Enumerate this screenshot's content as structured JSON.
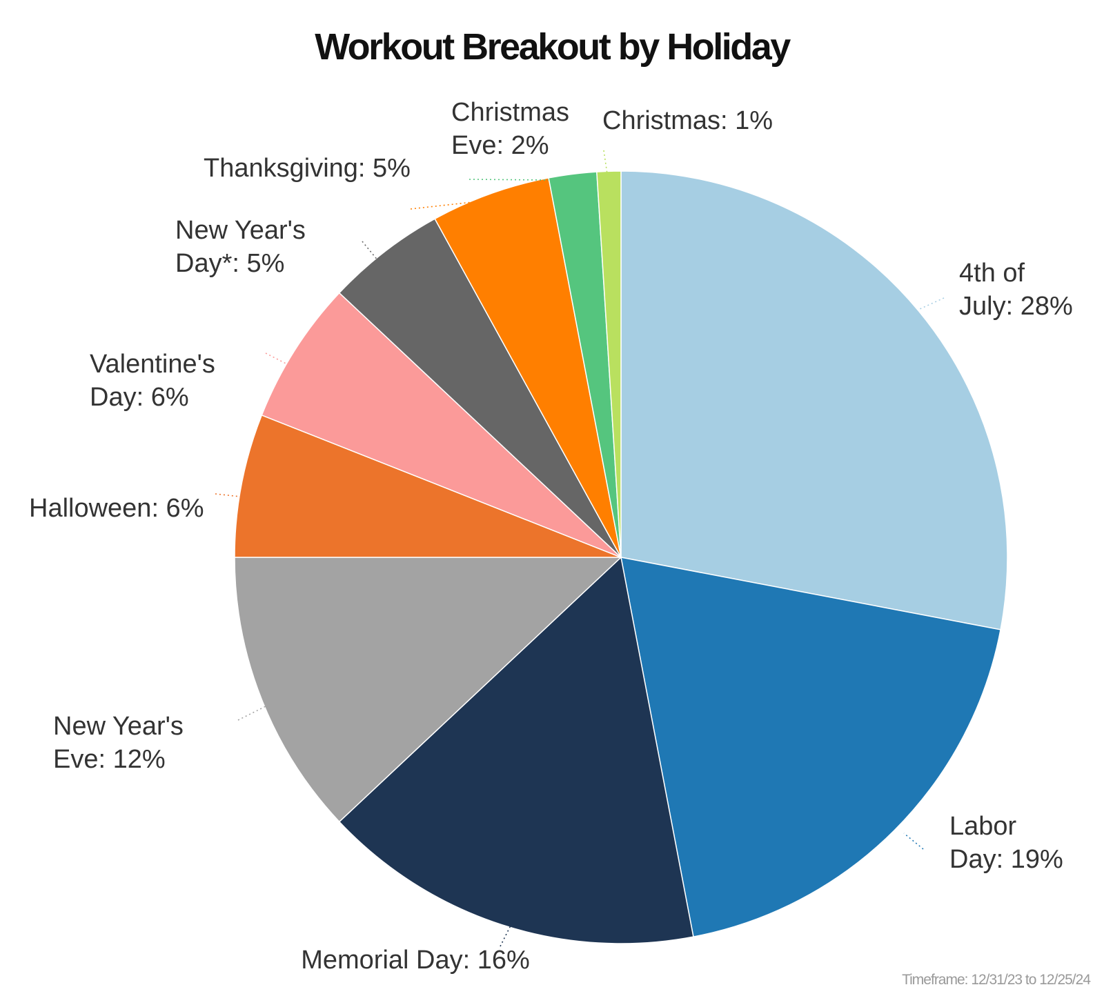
{
  "chart_data": {
    "type": "pie",
    "title": "Workout Breakout by Holiday",
    "footnote": "Timeframe: 12/31/23 to 12/25/24",
    "start_angle_deg": 0,
    "direction": "clockwise",
    "slices": [
      {
        "name": "4th of July",
        "label_lines": [
          "4th of",
          "July: 28%"
        ],
        "value": 28,
        "color": "#a6cee3"
      },
      {
        "name": "Labor Day",
        "label_lines": [
          "Labor",
          "Day: 19%"
        ],
        "value": 19,
        "color": "#1f78b4"
      },
      {
        "name": "Memorial Day",
        "label_lines": [
          "Memorial Day: 16%"
        ],
        "value": 16,
        "color": "#1e3553"
      },
      {
        "name": "New Year's Eve",
        "label_lines": [
          "New Year's",
          "Eve: 12%"
        ],
        "value": 12,
        "color": "#a3a3a3"
      },
      {
        "name": "Halloween",
        "label_lines": [
          "Halloween: 6%"
        ],
        "value": 6,
        "color": "#ec742b"
      },
      {
        "name": "Valentine's Day",
        "label_lines": [
          "Valentine's",
          "Day: 6%"
        ],
        "value": 6,
        "color": "#fb9a99"
      },
      {
        "name": "New Year's Day*",
        "label_lines": [
          "New Year's",
          "Day*: 5%"
        ],
        "value": 5,
        "color": "#666666"
      },
      {
        "name": "Thanksgiving",
        "label_lines": [
          "Thanksgiving: 5%"
        ],
        "value": 5,
        "color": "#ff7f00"
      },
      {
        "name": "Christmas Eve",
        "label_lines": [
          "Christmas",
          "Eve: 2%"
        ],
        "value": 2,
        "color": "#55c57e"
      },
      {
        "name": "Christmas",
        "label_lines": [
          "Christmas: 1%"
        ],
        "value": 1,
        "color": "#b9e05f"
      }
    ]
  }
}
